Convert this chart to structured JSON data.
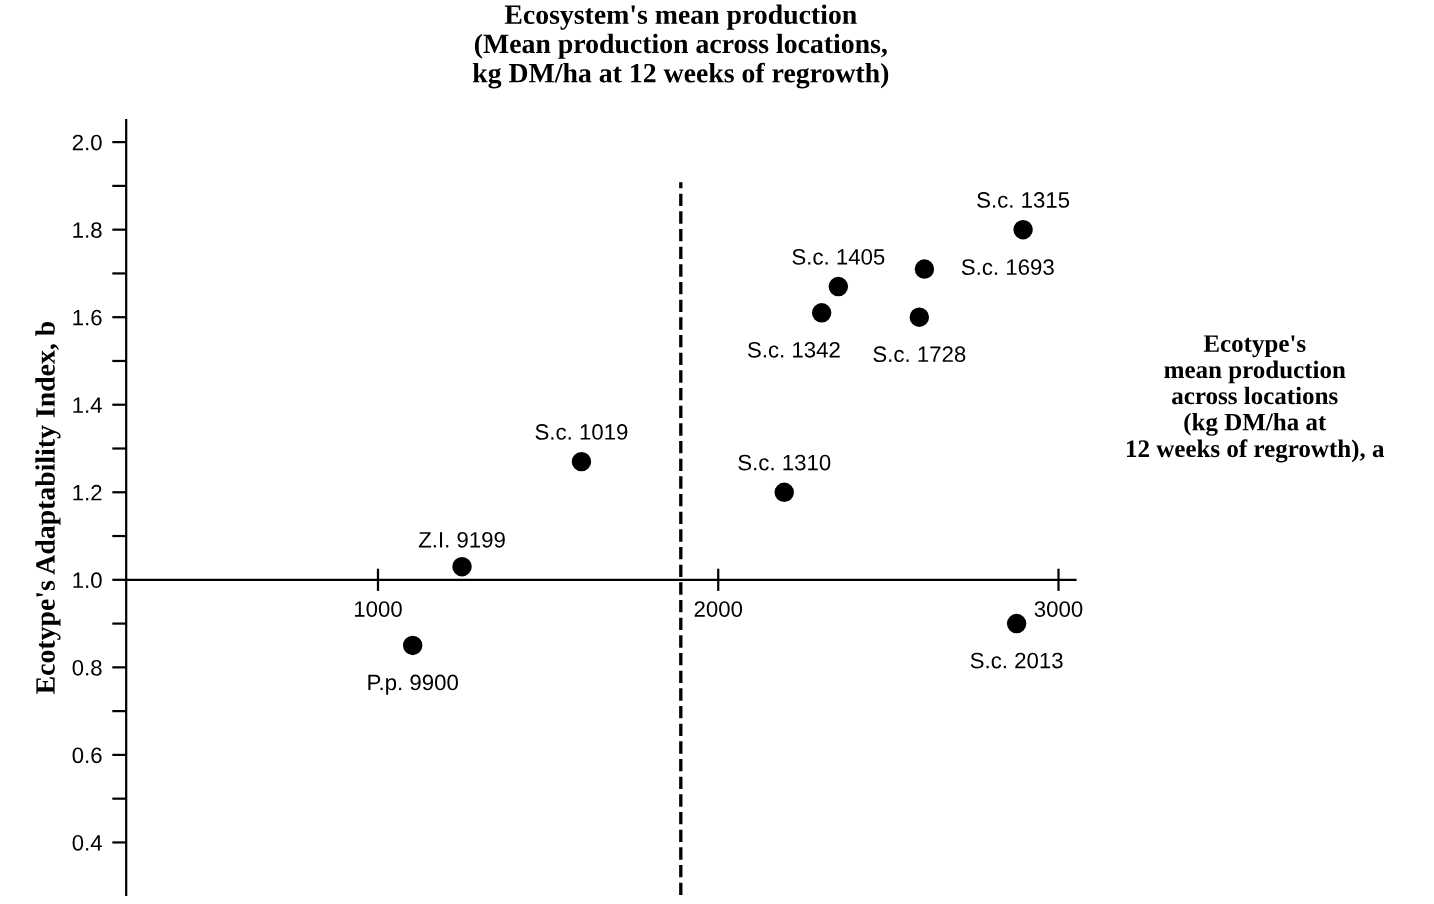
{
  "chart_data": {
    "type": "scatter",
    "ylabel": "Ecotype's Adaptability Index, b",
    "xlabel": "Ecotype's\nmean production\nacross locations\n(kg DM/ha at\n12 weeks of regrowth), a",
    "x": [
      1102,
      1247,
      1598,
      2194,
      2304,
      2353,
      2606,
      2591,
      2896,
      2877
    ],
    "series": [
      {
        "color": "#000000",
        "values": [
          0.85,
          1.03,
          1.27,
          1.2,
          1.61,
          1.67,
          1.71,
          1.6,
          1.8,
          0.9
        ]
      }
    ],
    "annotations": [
      {
        "text": "P.p. 9900",
        "x": 1102,
        "y": 0.85
      },
      {
        "text": "Z.I. 9199",
        "x": 1247,
        "y": 1.03
      },
      {
        "text": "S.c. 1019",
        "x": 1598,
        "y": 1.27
      },
      {
        "text": "S.c. 1310",
        "x": 2194,
        "y": 1.2
      },
      {
        "text": "S.c. 1342",
        "x": 2304,
        "y": 1.61
      },
      {
        "text": "S.c. 1405",
        "x": 2353,
        "y": 1.67
      },
      {
        "text": "S.c. 1693",
        "x": 2606,
        "y": 1.71
      },
      {
        "text": "S.c. 1728",
        "x": 2591,
        "y": 1.6
      },
      {
        "text": "S.c. 1315",
        "x": 2896,
        "y": 1.8
      },
      {
        "text": "S.c. 2013",
        "x": 2877,
        "y": 0.9
      }
    ],
    "ref_lines": [
      {
        "axis": "x",
        "value": 1890,
        "line_style": "dashed",
        "color": "#000000",
        "label": "Ecosystem's mean production\n(Mean production across locations,\nkg DM/ha at 12 weeks of regrowth)"
      }
    ],
    "xlim": [
      260,
      3050
    ],
    "ylim": [
      0.28,
      2.05
    ],
    "xticks": [
      1000,
      2000,
      3000
    ],
    "yticks": [
      {
        "value": 0.4,
        "label": "0.4"
      },
      {
        "value": 0.5,
        "label": null
      },
      {
        "value": 0.6,
        "label": "0.6"
      },
      {
        "value": 0.7,
        "label": null
      },
      {
        "value": 0.8,
        "label": "0.8"
      },
      {
        "value": 0.9,
        "label": null
      },
      {
        "value": 1.0,
        "label": "1.0"
      },
      {
        "value": 1.1,
        "label": null
      },
      {
        "value": 1.2,
        "label": "1.2"
      },
      {
        "value": 1.3,
        "label": null
      },
      {
        "value": 1.4,
        "label": "1.4"
      },
      {
        "value": 1.5,
        "label": null
      },
      {
        "value": 1.6,
        "label": "1.6"
      },
      {
        "value": 1.7,
        "label": null
      },
      {
        "value": 1.8,
        "label": "1.8"
      },
      {
        "value": 1.9,
        "label": null
      },
      {
        "value": 2.0,
        "label": "2.0"
      }
    ],
    "marker": "circle",
    "grid": false,
    "legend": false
  }
}
